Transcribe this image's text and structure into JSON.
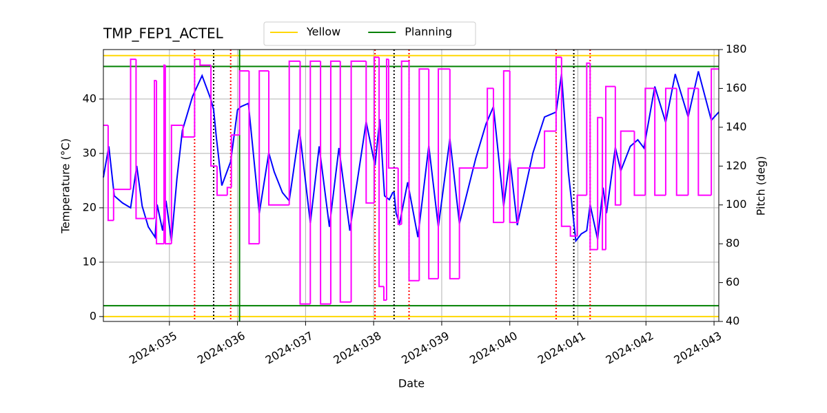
{
  "chart_data": {
    "type": "line",
    "title": "TMP_FEP1_ACTEL",
    "x_label": "Date",
    "y_label": "Temperature (°C)",
    "y2_label": "Pitch (deg)",
    "y2_color": "magenta",
    "xlim": [
      34.03,
      43.07
    ],
    "ylim": [
      -0.9,
      49.1
    ],
    "y2lim": [
      40,
      180
    ],
    "xticks": [
      {
        "value": 35,
        "label": "2024:035"
      },
      {
        "value": 36,
        "label": "2024:036"
      },
      {
        "value": 37,
        "label": "2024:037"
      },
      {
        "value": 38,
        "label": "2024:038"
      },
      {
        "value": 39,
        "label": "2024:039"
      },
      {
        "value": 40,
        "label": "2024:040"
      },
      {
        "value": 41,
        "label": "2024:041"
      },
      {
        "value": 42,
        "label": "2024:042"
      },
      {
        "value": 43,
        "label": "2024:043"
      }
    ],
    "yticks": [
      0,
      10,
      20,
      30,
      40
    ],
    "y2ticks": [
      40,
      60,
      80,
      100,
      120,
      140,
      160,
      180
    ],
    "grid": true,
    "legend": "top",
    "series": [
      {
        "color": "#0000ff",
        "x": [
          34.03,
          34.11,
          34.19,
          34.31,
          34.43,
          34.52,
          34.6,
          34.69,
          34.79,
          34.82,
          34.9,
          34.95,
          35.03,
          35.11,
          35.19,
          35.34,
          35.48,
          35.61,
          35.65,
          35.69,
          35.77,
          35.9,
          36.0,
          36.05,
          36.16,
          36.32,
          36.46,
          36.54,
          36.66,
          36.76,
          36.91,
          37.07,
          37.2,
          37.35,
          37.49,
          37.65,
          37.89,
          38.02,
          38.09,
          38.16,
          38.23,
          38.28,
          38.3,
          38.33,
          38.38,
          38.5,
          38.65,
          38.81,
          38.95,
          39.12,
          39.26,
          39.5,
          39.65,
          39.76,
          39.91,
          40.0,
          40.11,
          40.34,
          40.51,
          40.68,
          40.76,
          40.86,
          40.97,
          41.05,
          41.13,
          41.18,
          41.29,
          41.37,
          41.42,
          41.55,
          41.63,
          41.77,
          41.88,
          41.97,
          42.13,
          42.29,
          42.43,
          42.62,
          42.77,
          42.96,
          43.07
        ],
        "values": [
          25.6,
          31.3,
          22.2,
          20.9,
          20.0,
          27.7,
          20.3,
          16.5,
          14.6,
          20.6,
          15.8,
          21.3,
          13.9,
          25.3,
          34.2,
          40.5,
          44.3,
          39.9,
          38.0,
          32.9,
          24.1,
          28.5,
          38.0,
          38.6,
          39.2,
          19.0,
          30.1,
          26.6,
          22.8,
          21.3,
          34.4,
          17.2,
          31.3,
          16.5,
          31.0,
          15.8,
          35.8,
          27.8,
          36.3,
          22.2,
          21.5,
          22.8,
          22.8,
          19.0,
          17.1,
          24.7,
          14.6,
          31.4,
          16.5,
          32.7,
          17.1,
          29.1,
          35.4,
          38.6,
          20.3,
          29.1,
          16.8,
          30.1,
          36.7,
          37.6,
          44.6,
          26.6,
          13.9,
          15.2,
          15.8,
          20.6,
          14.2,
          23.7,
          19.0,
          31.1,
          26.8,
          31.3,
          32.5,
          31.0,
          42.3,
          35.7,
          44.6,
          36.7,
          45.1,
          36.1,
          37.6
        ]
      },
      {
        "color": "#ff00ff",
        "axis": "y2",
        "drawstyle": "steps-post",
        "x": [
          34.03,
          34.1,
          34.18,
          34.43,
          34.51,
          34.78,
          34.81,
          34.92,
          34.94,
          35.03,
          35.2,
          35.37,
          35.45,
          35.61,
          35.7,
          35.85,
          35.91,
          36.03,
          36.17,
          36.32,
          36.46,
          36.76,
          36.92,
          37.07,
          37.22,
          37.37,
          37.51,
          37.67,
          37.89,
          38.01,
          38.08,
          38.15,
          38.19,
          38.22,
          38.36,
          38.41,
          38.52,
          38.67,
          38.81,
          38.95,
          39.12,
          39.26,
          39.67,
          39.76,
          39.91,
          40.0,
          40.12,
          40.51,
          40.68,
          40.76,
          40.89,
          40.99,
          41.13,
          41.18,
          41.29,
          41.36,
          41.41,
          41.55,
          41.63,
          41.83,
          41.99,
          42.13,
          42.29,
          42.45,
          42.62,
          42.77,
          42.96,
          43.07
        ],
        "values": [
          141,
          92,
          108,
          175,
          93,
          164,
          80,
          172,
          80,
          141,
          135,
          175,
          172,
          120,
          105,
          109,
          136,
          169,
          80,
          169,
          100,
          174,
          49,
          174,
          49,
          174,
          50,
          174,
          101,
          176,
          58,
          51,
          175,
          119,
          90,
          174,
          61,
          170,
          62,
          170,
          62,
          119,
          160,
          91,
          169,
          91,
          119,
          138,
          176,
          89,
          84,
          105,
          173,
          77,
          145,
          77,
          161,
          100,
          138,
          105,
          160,
          105,
          160,
          105,
          160,
          105,
          170,
          170
        ]
      }
    ],
    "hlines": [
      {
        "name": "Yellow",
        "color": "#ffd700",
        "values": [
          0,
          48
        ]
      },
      {
        "name": "Planning",
        "color": "#008000",
        "values": [
          2,
          46
        ]
      }
    ],
    "vlines": [
      {
        "color": "#ff0000",
        "style": "dotted",
        "values": [
          35.37,
          35.9,
          38.02,
          38.52,
          40.68,
          41.18
        ]
      },
      {
        "color": "#000000",
        "style": "dotted",
        "values": [
          35.65,
          38.3,
          40.94
        ]
      },
      {
        "color": "#008000",
        "style": "solid",
        "values": [
          36.03
        ]
      }
    ]
  }
}
